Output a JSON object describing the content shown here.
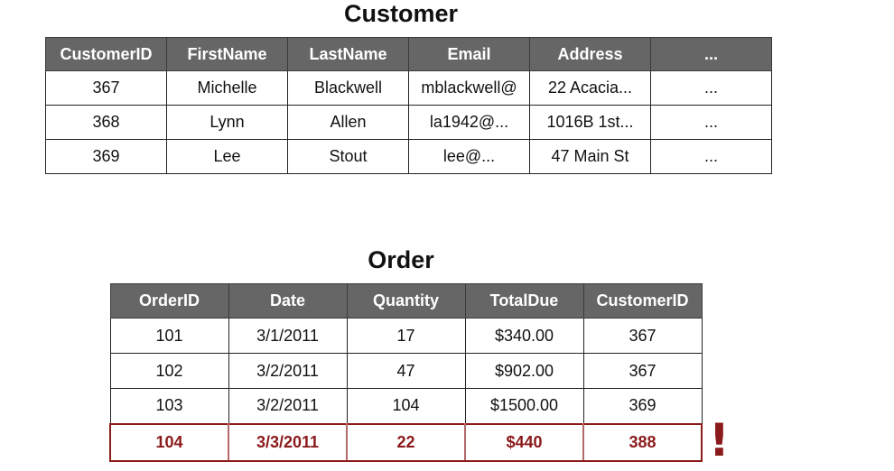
{
  "customer": {
    "title": "Customer",
    "columns": [
      "CustomerID",
      "FirstName",
      "LastName",
      "Email",
      "Address",
      "..."
    ],
    "rows": [
      [
        "367",
        "Michelle",
        "Blackwell",
        "mblackwell@",
        "22 Acacia...",
        "..."
      ],
      [
        "368",
        "Lynn",
        "Allen",
        "la1942@...",
        "1016B 1st...",
        "..."
      ],
      [
        "369",
        "Lee",
        "Stout",
        "lee@...",
        "47 Main St",
        "..."
      ]
    ]
  },
  "order": {
    "title": "Order",
    "columns": [
      "OrderID",
      "Date",
      "Quantity",
      "TotalDue",
      "CustomerID"
    ],
    "rows": [
      [
        "101",
        "3/1/2011",
        "17",
        "$340.00",
        "367"
      ],
      [
        "102",
        "3/2/2011",
        "47",
        "$902.00",
        "367"
      ],
      [
        "103",
        "3/2/2011",
        "104",
        "$1500.00",
        "369"
      ]
    ],
    "invalid_row": [
      "104",
      "3/3/2011",
      "22",
      "$440",
      "388"
    ]
  },
  "warning": {
    "mark": "!"
  },
  "colors": {
    "header_bg": "#666666",
    "header_text": "#ffffff",
    "invalid": "#8b1a1a"
  }
}
